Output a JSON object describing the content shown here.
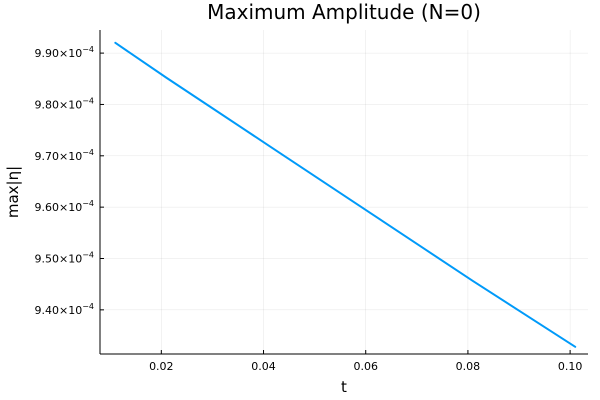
{
  "chart_data": {
    "type": "line",
    "title": "Maximum Amplitude (N=0)",
    "xlabel": "t",
    "ylabel": "max|η|",
    "xlim": [
      0.008,
      0.1035
    ],
    "ylim": [
      0.0009314,
      0.0009945
    ],
    "grid": true,
    "legend": "none",
    "x_ticks": [
      0.02,
      0.04,
      0.06,
      0.08,
      0.1
    ],
    "x_tick_labels": [
      "0.02",
      "0.04",
      "0.06",
      "0.08",
      "0.10"
    ],
    "y_ticks": [
      {
        "value": 0.00094,
        "mantissa": "9.40×10",
        "exponent": "−4"
      },
      {
        "value": 0.00095,
        "mantissa": "9.50×10",
        "exponent": "−4"
      },
      {
        "value": 0.00096,
        "mantissa": "9.60×10",
        "exponent": "−4"
      },
      {
        "value": 0.00097,
        "mantissa": "9.70×10",
        "exponent": "−4"
      },
      {
        "value": 0.00098,
        "mantissa": "9.80×10",
        "exponent": "−4"
      },
      {
        "value": 0.00099,
        "mantissa": "9.90×10",
        "exponent": "−4"
      }
    ],
    "series": [
      {
        "color": "#009af9",
        "x": [
          0.011,
          0.021,
          0.031,
          0.041,
          0.051,
          0.061,
          0.071,
          0.081,
          0.091,
          0.101
        ],
        "y": [
          0.000992,
          0.0009852,
          0.0009786,
          0.000972,
          0.0009654,
          0.0009588,
          0.0009522,
          0.0009456,
          0.0009392,
          0.0009328
        ]
      }
    ]
  }
}
